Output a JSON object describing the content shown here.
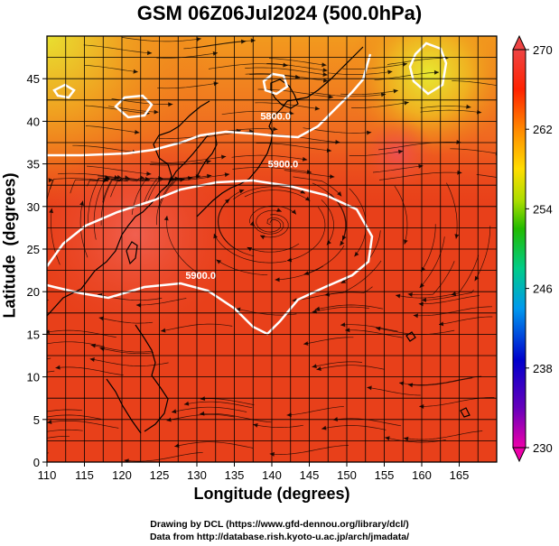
{
  "title": "GSM 06Z06Jul2024 (500.0hPa)",
  "credit": {
    "line1": "Drawing by DCL (https://www.gfd-dennou.org/library/dcl/)",
    "line2": "Data from http://database.rish.kyoto-u.ac.jp/arch/jmadata/"
  },
  "chart_data": {
    "type": "heatmap",
    "title": "GSM 06Z06Jul2024 (500.0hPa)",
    "xlabel": "Longitude (degrees)",
    "ylabel": "Latitude  (degrees)",
    "xlim": [
      110,
      170
    ],
    "ylim": [
      0,
      50
    ],
    "x_ticks": [
      "110",
      "115",
      "120",
      "125",
      "130",
      "135",
      "140",
      "145",
      "150",
      "155",
      "160",
      "165"
    ],
    "y_ticks": [
      "0",
      "5",
      "10",
      "15",
      "20",
      "25",
      "30",
      "35",
      "40",
      "45"
    ],
    "grid": true,
    "colorbar": {
      "min": 230,
      "max": 270,
      "labels": [
        "270",
        "262",
        "254",
        "246",
        "238",
        "230"
      ],
      "colors": [
        "#ee00aa",
        "#6600bb",
        "#0000cc",
        "#0099ee",
        "#00cc88",
        "#22bb00",
        "#aadd00",
        "#ffdd00",
        "#ff8800",
        "#ff2200",
        "#ee4444"
      ]
    },
    "contours": [
      {
        "label": "5800.0",
        "lon": 140.5,
        "lat": 40.2
      },
      {
        "label": "5900.0",
        "lon": 141.5,
        "lat": 34.6
      },
      {
        "label": "5900.0",
        "lon": 130.5,
        "lat": 21.5
      }
    ],
    "colors": {
      "map_background": "#e8401a",
      "coastline": "#000000",
      "contour": "#ffffff",
      "streamline": "#000000"
    }
  }
}
